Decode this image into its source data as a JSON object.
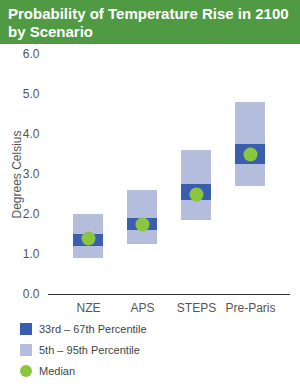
{
  "chart_data": {
    "type": "range",
    "title": "Probability of Temperature Rise in 2100 by Scenario",
    "y_label": "Degrees Celsius",
    "categories": [
      "NZE",
      "APS",
      "STEPS",
      "Pre-Paris"
    ],
    "ylim": [
      0,
      6
    ],
    "yticks": [
      0,
      1,
      2,
      3,
      4,
      5,
      6
    ],
    "grid": false,
    "legend": "bottom",
    "series": [
      {
        "name": "33rd – 67th Percentile",
        "type": "range",
        "color": "#3a5eae",
        "low": [
          1.2,
          1.6,
          2.35,
          3.25
        ],
        "high": [
          1.5,
          1.9,
          2.75,
          3.75
        ]
      },
      {
        "name": "5th – 95th Percentile",
        "type": "range",
        "color": "#b4bedc",
        "low": [
          0.9,
          1.25,
          1.85,
          2.7
        ],
        "high": [
          2.0,
          2.6,
          3.6,
          4.8
        ]
      },
      {
        "name": "Median",
        "type": "dot",
        "color": "#8cc63f",
        "values": [
          1.4,
          1.75,
          2.5,
          3.5
        ]
      }
    ]
  }
}
